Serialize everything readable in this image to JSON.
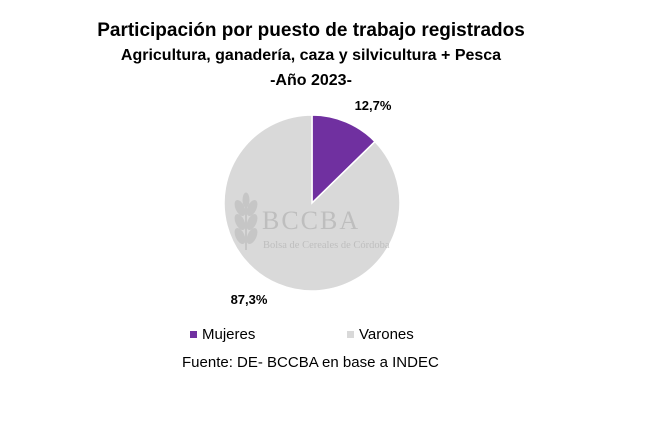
{
  "chart_data": {
    "type": "pie",
    "title": "Participación por puesto de trabajo registrados",
    "subtitle": "Agricultura, ganadería, caza y silvicultura + Pesca",
    "period": "-Año 2023-",
    "categories": [
      "Mujeres",
      "Varones"
    ],
    "values": [
      12.7,
      87.3
    ],
    "data_labels": [
      "12,7%",
      "87,3%"
    ],
    "colors": [
      "#7030A0",
      "#D9D9D9"
    ],
    "legend_position": "bottom",
    "watermark": {
      "name": "BCCBA",
      "subtitle": "Bolsa de Cereales de Córdoba"
    }
  },
  "source": "Fuente: DE- BCCBA en base a INDEC"
}
